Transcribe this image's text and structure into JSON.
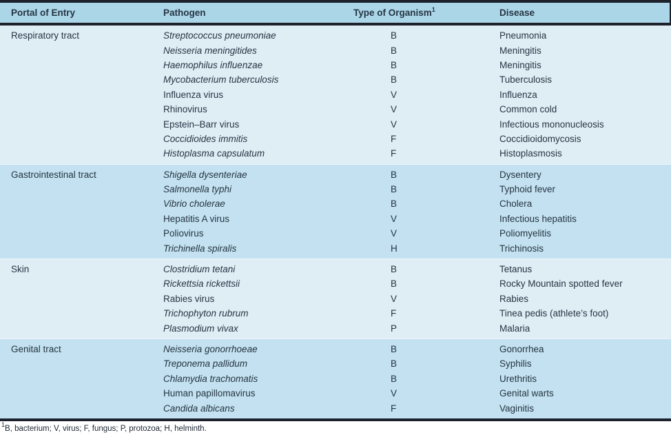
{
  "table": {
    "headers": {
      "portal": "Portal of Entry",
      "pathogen": "Pathogen",
      "organism": "Type of Organism",
      "organism_sup": "1",
      "disease": "Disease"
    },
    "sections": [
      {
        "portal": "Respiratory tract",
        "rows": [
          {
            "pathogen": "Streptococcus pneumoniae",
            "italic": true,
            "organism_type": "B",
            "disease": "Pneumonia"
          },
          {
            "pathogen": "Neisseria meningitides",
            "italic": true,
            "organism_type": "B",
            "disease": "Meningitis"
          },
          {
            "pathogen": "Haemophilus influenzae",
            "italic": true,
            "organism_type": "B",
            "disease": "Meningitis"
          },
          {
            "pathogen": "Mycobacterium tuberculosis",
            "italic": true,
            "organism_type": "B",
            "disease": "Tuberculosis"
          },
          {
            "pathogen": "Influenza virus",
            "italic": false,
            "organism_type": "V",
            "disease": "Influenza"
          },
          {
            "pathogen": "Rhinovirus",
            "italic": false,
            "organism_type": "V",
            "disease": "Common cold"
          },
          {
            "pathogen": "Epstein–Barr virus",
            "italic": false,
            "organism_type": "V",
            "disease": "Infectious mononucleosis"
          },
          {
            "pathogen": "Coccidioides immitis",
            "italic": true,
            "organism_type": "F",
            "disease": "Coccidioidomycosis"
          },
          {
            "pathogen": "Histoplasma capsulatum",
            "italic": true,
            "organism_type": "F",
            "disease": "Histoplasmosis"
          }
        ]
      },
      {
        "portal": "Gastrointestinal tract",
        "rows": [
          {
            "pathogen": "Shigella dysenteriae",
            "italic": true,
            "organism_type": "B",
            "disease": "Dysentery"
          },
          {
            "pathogen": "Salmonella typhi",
            "italic": true,
            "organism_type": "B",
            "disease": "Typhoid fever"
          },
          {
            "pathogen": "Vibrio cholerae",
            "italic": true,
            "organism_type": "B",
            "disease": "Cholera"
          },
          {
            "pathogen": "Hepatitis A virus",
            "italic": false,
            "organism_type": "V",
            "disease": "Infectious hepatitis"
          },
          {
            "pathogen": "Poliovirus",
            "italic": false,
            "organism_type": "V",
            "disease": "Poliomyelitis"
          },
          {
            "pathogen": "Trichinella spiralis",
            "italic": true,
            "organism_type": "H",
            "disease": "Trichinosis"
          }
        ]
      },
      {
        "portal": "Skin",
        "rows": [
          {
            "pathogen": "Clostridium tetani",
            "italic": true,
            "organism_type": "B",
            "disease": "Tetanus"
          },
          {
            "pathogen": "Rickettsia rickettsii",
            "italic": true,
            "organism_type": "B",
            "disease": "Rocky Mountain spotted fever"
          },
          {
            "pathogen": "Rabies virus",
            "italic": false,
            "organism_type": "V",
            "disease": "Rabies"
          },
          {
            "pathogen": "Trichophyton rubrum",
            "italic": true,
            "organism_type": "F",
            "disease": "Tinea pedis (athlete’s foot)"
          },
          {
            "pathogen": "Plasmodium vivax",
            "italic": true,
            "organism_type": "P",
            "disease": "Malaria"
          }
        ]
      },
      {
        "portal": "Genital tract",
        "rows": [
          {
            "pathogen": "Neisseria gonorrhoeae",
            "italic": true,
            "organism_type": "B",
            "disease": "Gonorrhea"
          },
          {
            "pathogen": "Treponema pallidum",
            "italic": true,
            "organism_type": "B",
            "disease": "Syphilis"
          },
          {
            "pathogen": "Chlamydia trachomatis",
            "italic": true,
            "organism_type": "B",
            "disease": "Urethritis"
          },
          {
            "pathogen": "Human papillomavirus",
            "italic": false,
            "organism_type": "V",
            "disease": "Genital warts"
          },
          {
            "pathogen": "Candida albicans",
            "italic": true,
            "organism_type": "F",
            "disease": "Vaginitis"
          }
        ]
      }
    ],
    "footnote": {
      "marker": "1",
      "text": "B, bacterium; V, virus; F, fungus; P, protozoa; H, helminth."
    }
  },
  "colors": {
    "header_bg": "#abd6e8",
    "section_light_bg": "#dfeef5",
    "section_dark_bg": "#c3e1f0",
    "rule": "#1c212c",
    "text": "#253442"
  }
}
